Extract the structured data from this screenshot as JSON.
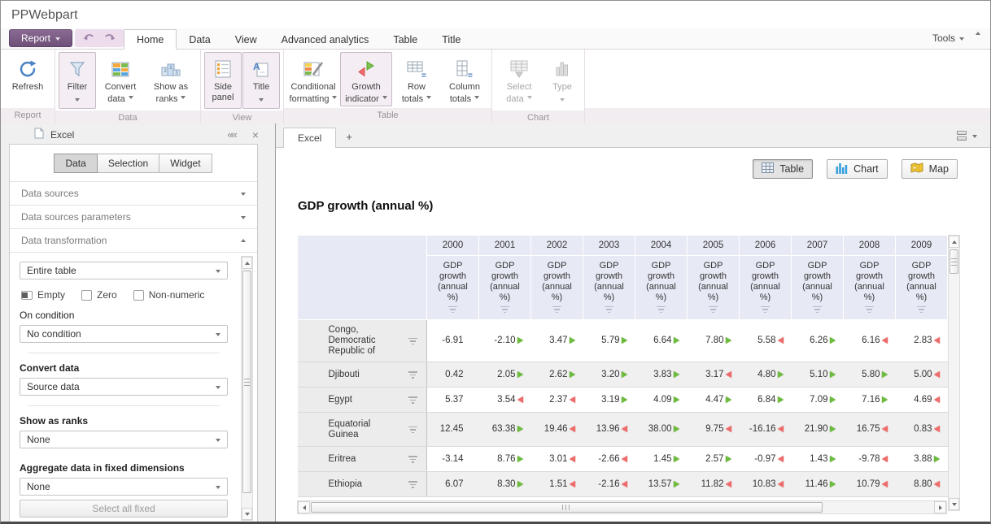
{
  "window": {
    "title": "PPWebpart"
  },
  "ribbon": {
    "report_button": {
      "label": "Report"
    },
    "tabs": [
      {
        "label": "Home",
        "active": true
      },
      {
        "label": "Data",
        "active": false
      },
      {
        "label": "View",
        "active": false
      },
      {
        "label": "Advanced analytics",
        "active": false
      },
      {
        "label": "Table",
        "active": false
      },
      {
        "label": "Title",
        "active": false
      }
    ],
    "tools": {
      "label": "Tools"
    },
    "buttons": {
      "refresh": {
        "line1": "Refresh"
      },
      "filter": {
        "line1": "Filter"
      },
      "convert_data": {
        "line1": "Convert",
        "line2": "data"
      },
      "show_as_ranks": {
        "line1": "Show as",
        "line2": "ranks"
      },
      "side_panel": {
        "line1": "Side",
        "line2": "panel"
      },
      "title": {
        "line1": "Title"
      },
      "conditional_formatting": {
        "line1": "Conditional",
        "line2": "formatting"
      },
      "growth_indicator": {
        "line1": "Growth",
        "line2": "indicator"
      },
      "row_totals": {
        "line1": "Row",
        "line2": "totals"
      },
      "column_totals": {
        "line1": "Column",
        "line2": "totals"
      },
      "select_data": {
        "line1": "Select",
        "line2": "data"
      },
      "type": {
        "line1": "Type"
      }
    },
    "group_labels": [
      "Report",
      "Data",
      "View",
      "Table",
      "Chart"
    ]
  },
  "side_panel": {
    "header": {
      "title": "Excel",
      "collapse_icon": "««",
      "close_icon": "×"
    },
    "tabs": [
      {
        "label": "Data",
        "active": true
      },
      {
        "label": "Selection",
        "active": false
      },
      {
        "label": "Widget",
        "active": false
      }
    ],
    "sections": [
      {
        "label": "Data sources",
        "expanded": false
      },
      {
        "label": "Data sources parameters",
        "expanded": false
      },
      {
        "label": "Data transformation",
        "expanded": true
      }
    ],
    "transformation": {
      "scope_value": "Entire table",
      "checkboxes": [
        {
          "label": "Empty",
          "state": "indeterminate"
        },
        {
          "label": "Zero",
          "state": "unchecked"
        },
        {
          "label": "Non-numeric",
          "state": "unchecked"
        }
      ],
      "on_condition_label": "On condition",
      "condition_value": "No condition",
      "convert_data_label": "Convert data",
      "convert_data_value": "Source data",
      "show_as_ranks_label": "Show as ranks",
      "show_as_ranks_value": "None",
      "aggregate_label": "Aggregate data in fixed dimensions",
      "aggregate_value": "None",
      "select_all_fixed": "Select all fixed"
    }
  },
  "main": {
    "doc_tabs": [
      {
        "label": "Excel",
        "active": true
      }
    ],
    "new_tab_label": "+",
    "view_switch": [
      {
        "label": "Table",
        "active": true
      },
      {
        "label": "Chart",
        "active": false
      },
      {
        "label": "Map",
        "active": false
      }
    ],
    "report_title": "GDP growth (annual %)"
  },
  "table": {
    "measure_label": "GDP growth (annual %)",
    "years": [
      "2000",
      "2001",
      "2002",
      "2003",
      "2004",
      "2005",
      "2006",
      "2007",
      "2008",
      "2009"
    ],
    "rows": [
      {
        "name": "Congo, Democratic Republic of",
        "lines": 3,
        "values": [
          "-6.91",
          "-2.10",
          "3.47",
          "5.79",
          "6.64",
          "7.80",
          "5.58",
          "6.26",
          "6.16",
          "2.83"
        ],
        "indicators": [
          "",
          "up",
          "up",
          "up",
          "up",
          "up",
          "down",
          "up",
          "down",
          "down"
        ]
      },
      {
        "name": "Djibouti",
        "lines": 1,
        "values": [
          "0.42",
          "2.05",
          "2.62",
          "3.20",
          "3.83",
          "3.17",
          "4.80",
          "5.10",
          "5.80",
          "5.00"
        ],
        "indicators": [
          "",
          "up",
          "up",
          "up",
          "up",
          "down",
          "up",
          "up",
          "up",
          "down"
        ]
      },
      {
        "name": "Egypt",
        "lines": 1,
        "values": [
          "5.37",
          "3.54",
          "2.37",
          "3.19",
          "4.09",
          "4.47",
          "6.84",
          "7.09",
          "7.16",
          "4.69"
        ],
        "indicators": [
          "",
          "down",
          "down",
          "up",
          "up",
          "up",
          "up",
          "up",
          "up",
          "down"
        ]
      },
      {
        "name": "Equatorial Guinea",
        "lines": 2,
        "values": [
          "12.45",
          "63.38",
          "19.46",
          "13.96",
          "38.00",
          "9.75",
          "-16.16",
          "21.90",
          "16.75",
          "0.83"
        ],
        "indicators": [
          "",
          "up",
          "down",
          "down",
          "up",
          "down",
          "down",
          "up",
          "down",
          "down"
        ]
      },
      {
        "name": "Eritrea",
        "lines": 1,
        "values": [
          "-3.14",
          "8.76",
          "3.01",
          "-2.66",
          "1.45",
          "2.57",
          "-0.97",
          "1.43",
          "-9.78",
          "3.88"
        ],
        "indicators": [
          "",
          "up",
          "down",
          "down",
          "up",
          "up",
          "down",
          "up",
          "down",
          "up"
        ]
      },
      {
        "name": "Ethiopia",
        "lines": 1,
        "values": [
          "6.07",
          "8.30",
          "1.51",
          "-2.16",
          "13.57",
          "11.82",
          "10.83",
          "11.46",
          "10.79",
          "8.80"
        ],
        "indicators": [
          "",
          "up",
          "down",
          "down",
          "up",
          "down",
          "down",
          "up",
          "down",
          "down"
        ]
      }
    ]
  },
  "colors": {
    "accent_purple": "#7b5d85",
    "indicator_up": "#6cbb3c",
    "indicator_down": "#ee6b6b",
    "table_header_fill": "#e7eaf5"
  }
}
